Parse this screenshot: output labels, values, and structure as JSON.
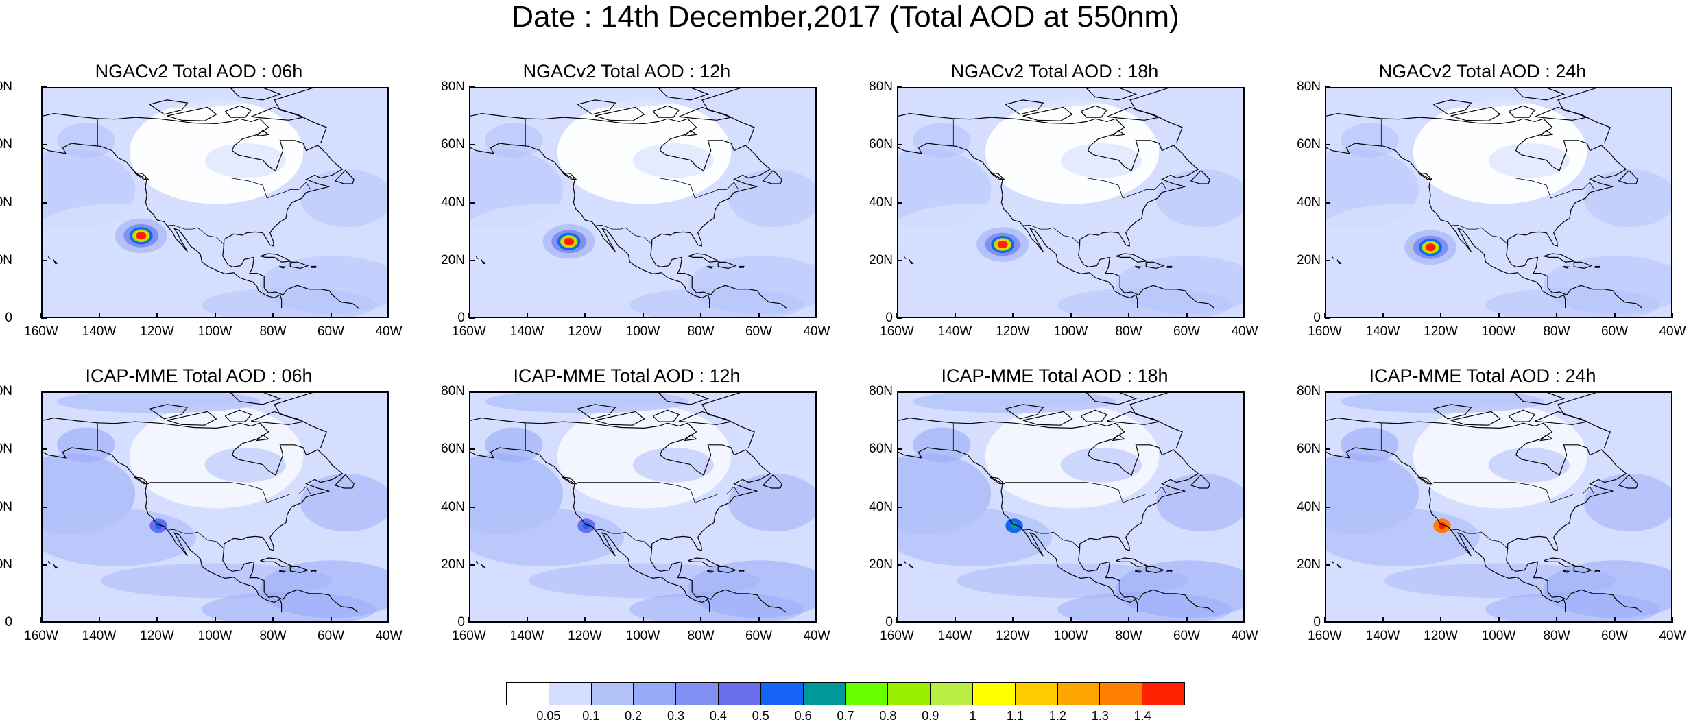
{
  "title": "Date : 14th December,2017 (Total AOD at 550nm)",
  "panels": [
    {
      "title": "NGACv2 Total AOD : 06h",
      "model": "NGACv2",
      "hour": "06h",
      "hotspot": {
        "lon": -126,
        "lat": 29,
        "peak_aod": 1.4
      }
    },
    {
      "title": "NGACv2 Total AOD : 12h",
      "model": "NGACv2",
      "hour": "12h",
      "hotspot": {
        "lon": -126,
        "lat": 27,
        "peak_aod": 1.4
      }
    },
    {
      "title": "NGACv2 Total AOD : 18h",
      "model": "NGACv2",
      "hour": "18h",
      "hotspot": {
        "lon": -124,
        "lat": 26,
        "peak_aod": 1.4
      }
    },
    {
      "title": "NGACv2 Total AOD : 24h",
      "model": "NGACv2",
      "hour": "24h",
      "hotspot": {
        "lon": -124,
        "lat": 25,
        "peak_aod": 1.4
      }
    },
    {
      "title": "ICAP-MME Total AOD : 06h",
      "model": "ICAP-MME",
      "hour": "06h",
      "hotspot": {
        "lon": -120,
        "lat": 34,
        "peak_aod": 0.5
      }
    },
    {
      "title": "ICAP-MME Total AOD : 12h",
      "model": "ICAP-MME",
      "hour": "12h",
      "hotspot": {
        "lon": -120,
        "lat": 34,
        "peak_aod": 0.5
      }
    },
    {
      "title": "ICAP-MME Total AOD : 18h",
      "model": "ICAP-MME",
      "hour": "18h",
      "hotspot": {
        "lon": -120,
        "lat": 34,
        "peak_aod": 0.6
      }
    },
    {
      "title": "ICAP-MME Total AOD : 24h",
      "model": "ICAP-MME",
      "hour": "24h",
      "hotspot": {
        "lon": -120,
        "lat": 34,
        "peak_aod": 1.4
      }
    }
  ],
  "axes": {
    "lat_ticks": [
      "80N",
      "60N",
      "40N",
      "20N",
      "0"
    ],
    "lon_ticks": [
      "160W",
      "140W",
      "120W",
      "100W",
      "80W",
      "60W",
      "40W"
    ],
    "lon_range": [
      -160,
      -40
    ],
    "lat_range": [
      0,
      80
    ]
  },
  "colorbar": {
    "labels": [
      "0.05",
      "0.1",
      "0.2",
      "0.3",
      "0.4",
      "0.5",
      "0.6",
      "0.7",
      "0.8",
      "0.9",
      "1",
      "1.1",
      "1.2",
      "1.3",
      "1.4"
    ],
    "colors": [
      "#ffffff",
      "#d5deff",
      "#b4c2fa",
      "#97aaf7",
      "#8190f2",
      "#6a6eed",
      "#1664f5",
      "#009999",
      "#66ff00",
      "#99ee00",
      "#bbee44",
      "#ffff00",
      "#ffcc00",
      "#ffa500",
      "#ff7f00",
      "#ff2200"
    ]
  }
}
